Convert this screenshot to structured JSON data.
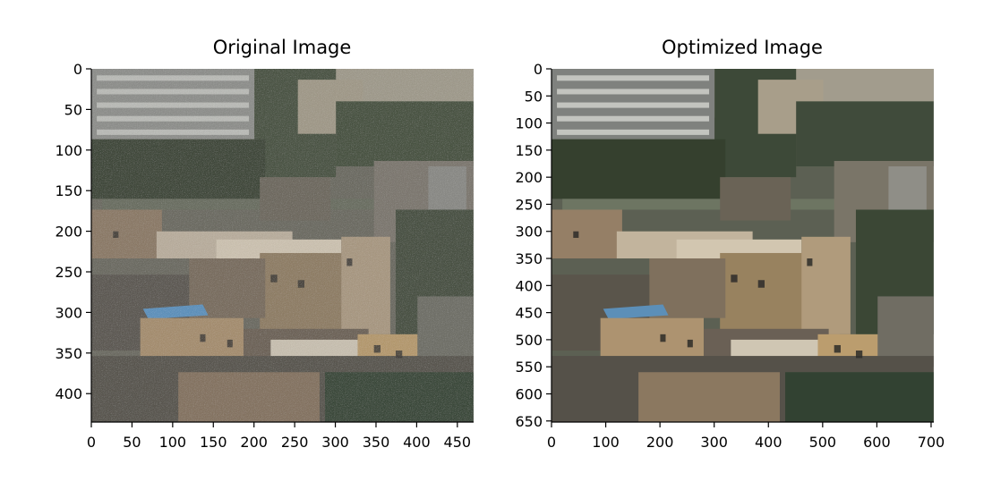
{
  "chart_data": [
    {
      "type": "image",
      "title": "Original Image",
      "xlabel": "",
      "ylabel": "",
      "xlim": [
        0,
        470
      ],
      "ylim": [
        435,
        0
      ],
      "x_ticks": [
        0,
        50,
        100,
        150,
        200,
        250,
        300,
        350,
        400,
        450
      ],
      "y_ticks": [
        0,
        50,
        100,
        150,
        200,
        250,
        300,
        350,
        400
      ],
      "image_description": "Noisy photograph of a dense hillside city with apartment buildings",
      "noise": "high"
    },
    {
      "type": "image",
      "title": "Optimized Image",
      "xlabel": "",
      "ylabel": "",
      "xlim": [
        0,
        705
      ],
      "ylim": [
        652,
        0
      ],
      "x_ticks": [
        0,
        100,
        200,
        300,
        400,
        500,
        600,
        700
      ],
      "y_ticks": [
        0,
        50,
        100,
        150,
        200,
        250,
        300,
        350,
        400,
        450,
        500,
        550,
        600,
        650
      ],
      "image_description": "Denoised, upscaled version of the same hillside city photograph",
      "noise": "none"
    }
  ],
  "colors": {
    "sky_haze": "#b7b2a9",
    "vegetation": "#3e4a39",
    "building_light": "#c9bfae",
    "building_tan": "#a8906d",
    "building_dark": "#5c5a55",
    "roof_blue": "#5b8fb8"
  }
}
